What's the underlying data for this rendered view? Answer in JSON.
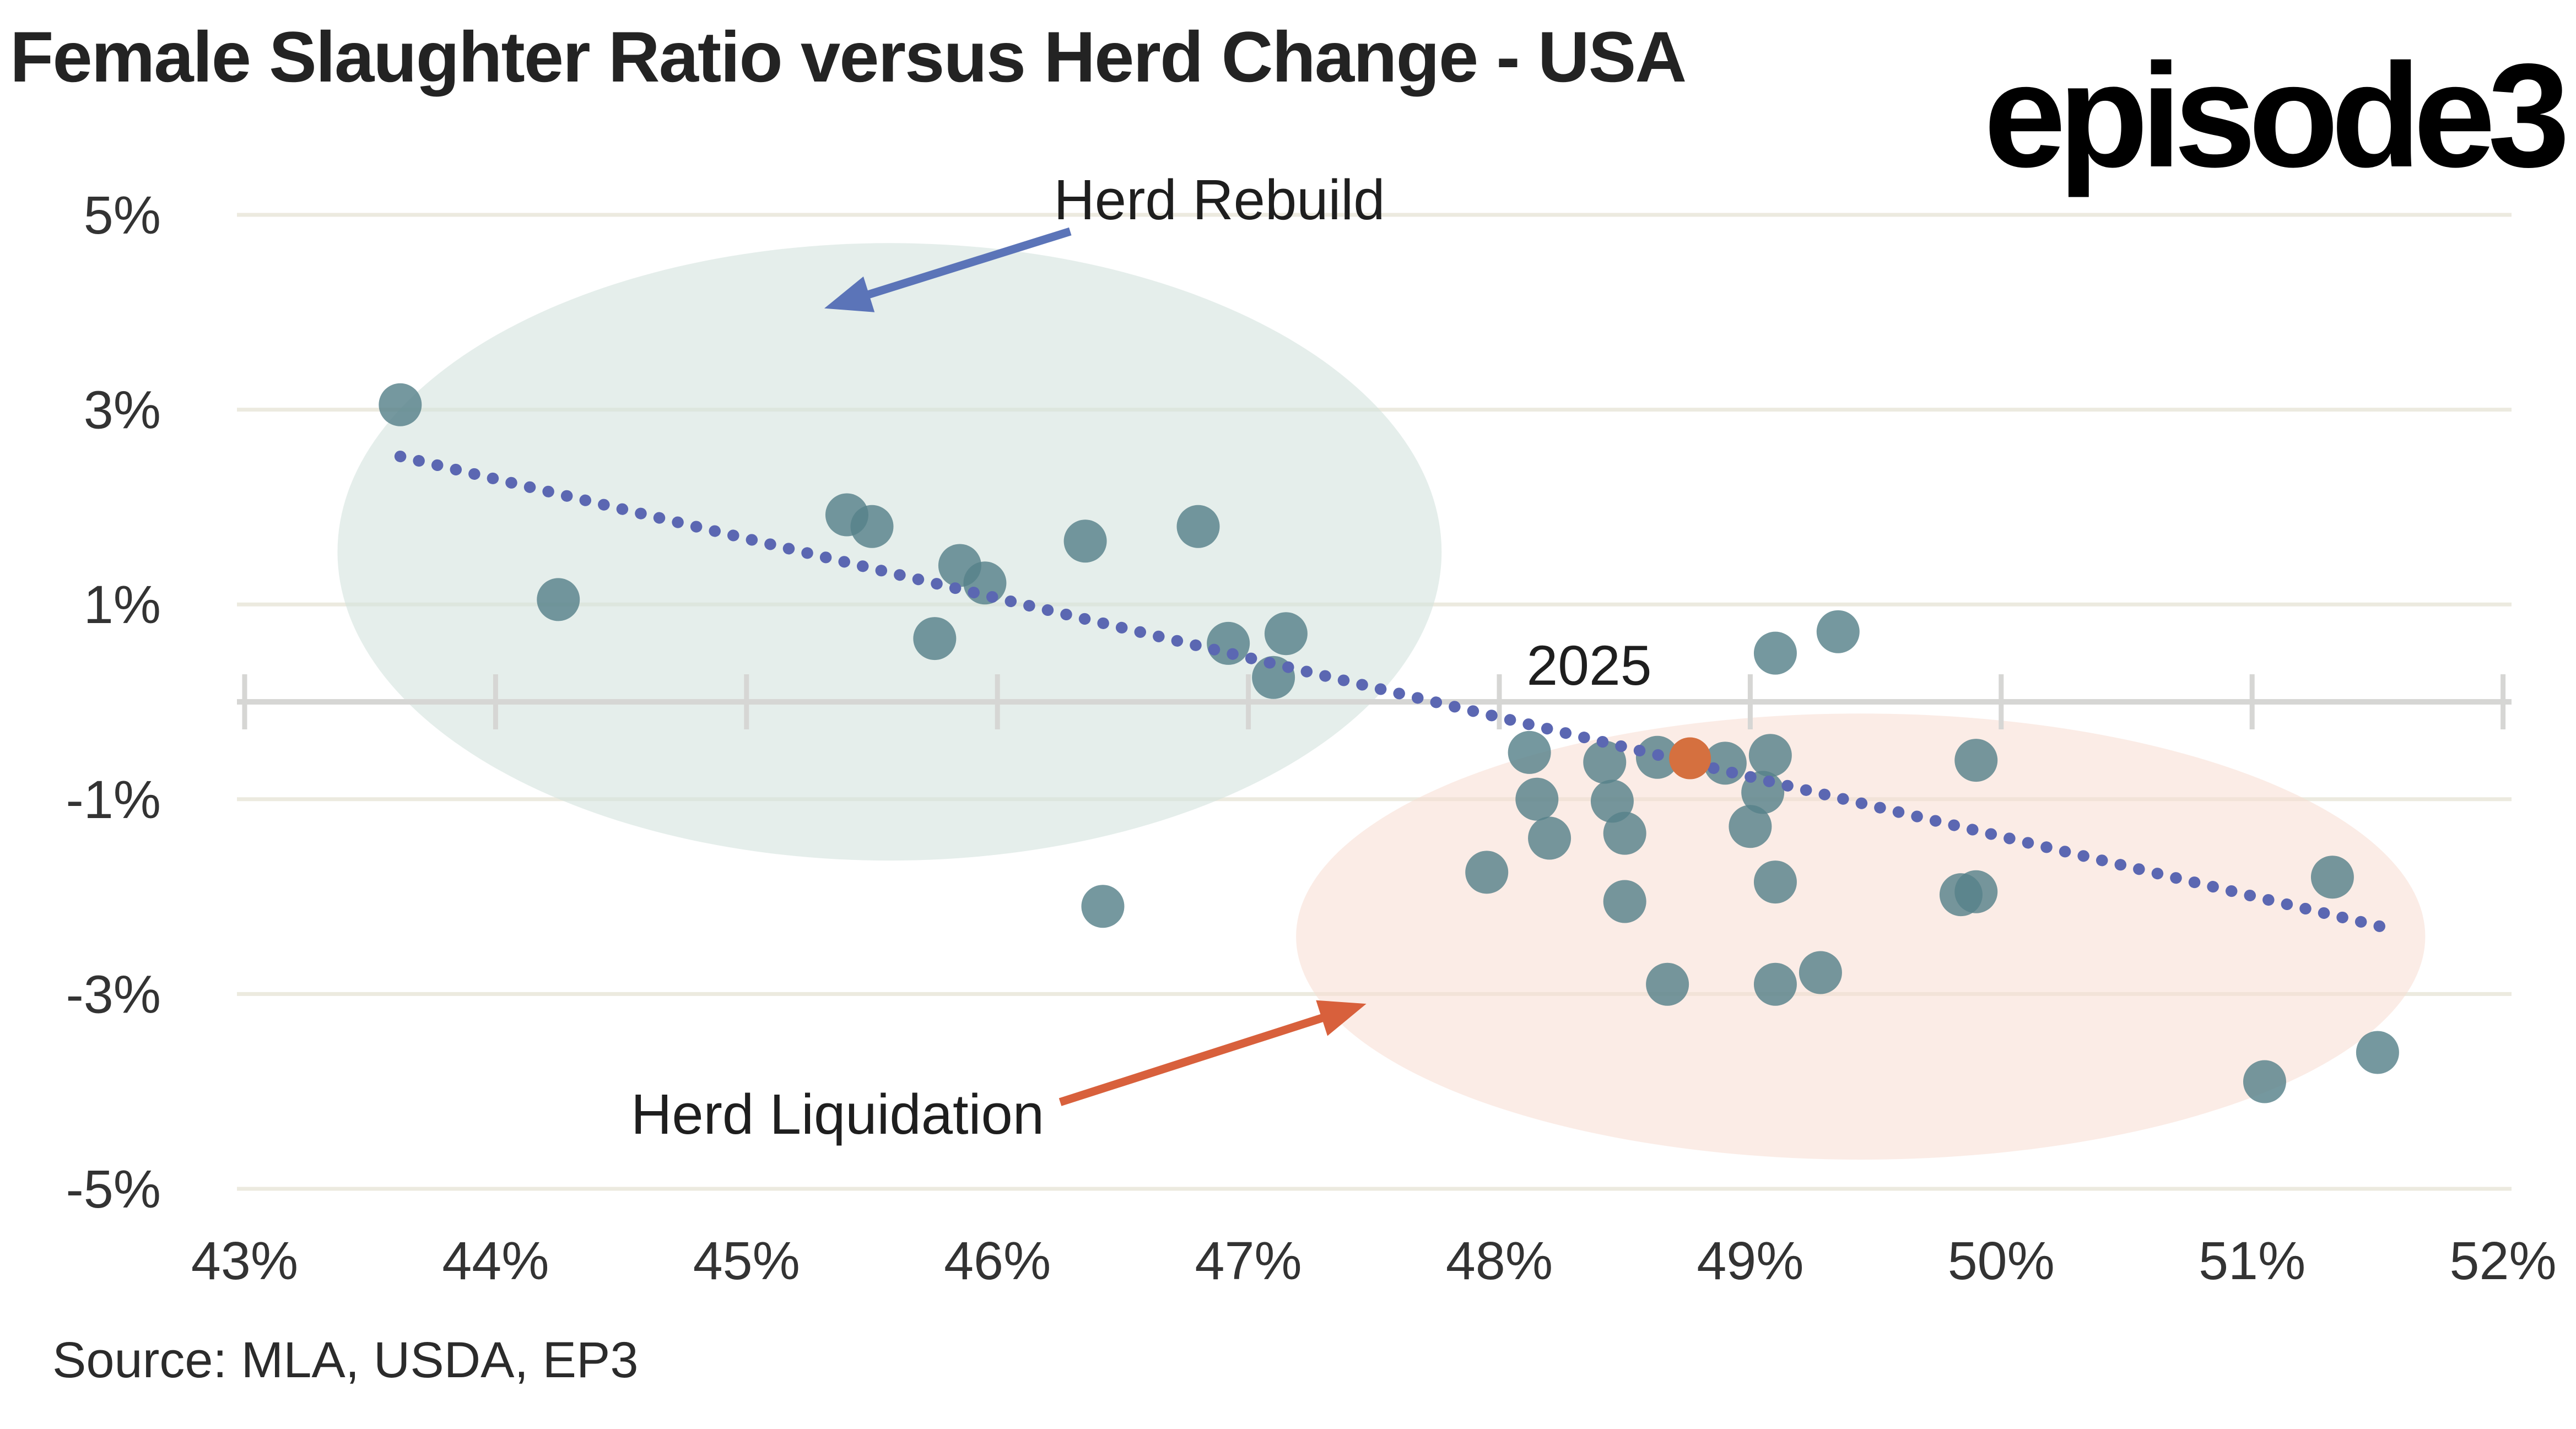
{
  "header": {
    "title": "Female Slaughter Ratio versus Herd Change - USA",
    "logo": "episode3"
  },
  "footer": {
    "source": "Source: MLA, USDA, EP3"
  },
  "annotations": {
    "rebuild_label": "Herd Rebuild",
    "liquidation_label": "Herd Liquidation",
    "year_label": "2025"
  },
  "colors": {
    "background": "#ffffff",
    "title": "#232323",
    "logo": "#000000",
    "axis_text": "#333333",
    "annotation_text": "#1e1e1e",
    "gridline": "#ECEADF",
    "zero_axis": "#D6D6D4",
    "teal_dot": "#57818A",
    "orange_dot": "#D5703F",
    "trendline": "#5B67B2",
    "rebuild_ellipse": "#D3E2DE",
    "liquidation_ellipse": "#F8DCD2",
    "rebuild_arrow": "#5B74B8",
    "liquidation_arrow": "#D8603C"
  },
  "chart_data": {
    "type": "scatter",
    "title": "Female Slaughter Ratio versus Herd Change - USA",
    "xlabel": "",
    "ylabel": "",
    "xlim": [
      43,
      52
    ],
    "ylim": [
      -5,
      5
    ],
    "grid": "horizontal",
    "x_ticks": [
      {
        "value": 43,
        "label": "43%"
      },
      {
        "value": 44,
        "label": "44%"
      },
      {
        "value": 45,
        "label": "45%"
      },
      {
        "value": 46,
        "label": "46%"
      },
      {
        "value": 47,
        "label": "47%"
      },
      {
        "value": 48,
        "label": "48%"
      },
      {
        "value": 49,
        "label": "49%"
      },
      {
        "value": 50,
        "label": "50%"
      },
      {
        "value": 51,
        "label": "51%"
      },
      {
        "value": 52,
        "label": "52%"
      }
    ],
    "y_ticks": [
      {
        "value": 5,
        "label": "5%"
      },
      {
        "value": 3,
        "label": "3%"
      },
      {
        "value": 1,
        "label": "1%"
      },
      {
        "value": -1,
        "label": "-1%"
      },
      {
        "value": -3,
        "label": "-3%"
      },
      {
        "value": -5,
        "label": "-5%"
      }
    ],
    "series": [
      {
        "name": "historical-years",
        "color": "#57818A",
        "points": [
          [
            43.62,
            3.05
          ],
          [
            44.25,
            1.05
          ],
          [
            45.4,
            1.92
          ],
          [
            45.5,
            1.8
          ],
          [
            45.75,
            0.65
          ],
          [
            45.85,
            1.4
          ],
          [
            45.95,
            1.22
          ],
          [
            46.35,
            1.65
          ],
          [
            46.42,
            -2.1
          ],
          [
            46.8,
            1.8
          ],
          [
            46.92,
            0.6
          ],
          [
            47.1,
            0.25
          ],
          [
            47.15,
            0.7
          ],
          [
            47.95,
            -1.75
          ],
          [
            48.12,
            -0.52
          ],
          [
            48.15,
            -1.0
          ],
          [
            48.2,
            -1.4
          ],
          [
            48.42,
            -0.62
          ],
          [
            48.45,
            -1.02
          ],
          [
            48.5,
            -1.35
          ],
          [
            48.5,
            -2.05
          ],
          [
            48.63,
            -0.57
          ],
          [
            48.67,
            -2.9
          ],
          [
            48.9,
            -0.63
          ],
          [
            49.08,
            -0.55
          ],
          [
            49.05,
            -0.93
          ],
          [
            49.0,
            -1.28
          ],
          [
            49.1,
            -1.85
          ],
          [
            49.1,
            -2.9
          ],
          [
            49.28,
            -2.78
          ],
          [
            49.1,
            0.5
          ],
          [
            49.35,
            0.72
          ],
          [
            49.84,
            -1.98
          ],
          [
            49.9,
            -1.95
          ],
          [
            49.9,
            -0.6
          ],
          [
            51.32,
            -1.8
          ],
          [
            51.05,
            -3.9
          ],
          [
            51.5,
            -3.6
          ]
        ]
      },
      {
        "name": "2025",
        "color": "#D5703F",
        "points": [
          [
            48.76,
            -0.58
          ]
        ]
      }
    ],
    "trendline": {
      "style": "dotted",
      "color": "#5B67B2",
      "x1": 43.62,
      "y1": 2.52,
      "x2": 51.55,
      "y2": -2.33
    },
    "regions": [
      {
        "name": "herd-rebuild",
        "shape": "ellipse",
        "color": "#D3E2DE",
        "opacity": 0.6,
        "cx": 45.57,
        "cy": 1.54,
        "rx": 2.2,
        "ry": 3.17
      },
      {
        "name": "herd-liquidation",
        "shape": "ellipse",
        "color": "#F8DCD2",
        "opacity": 0.55,
        "cx": 49.44,
        "cy": -2.41,
        "rx": 2.25,
        "ry": 2.29
      }
    ],
    "annotations": [
      {
        "name": "rebuild",
        "text": "Herd Rebuild",
        "x": 46.88,
        "y": 4.97,
        "arrow": {
          "color": "#5B74B8",
          "from_x": 46.29,
          "from_y": 4.83,
          "to_x": 45.31,
          "to_y": 4.04
        }
      },
      {
        "name": "liquidation",
        "text": "Herd Liquidation",
        "x": 45.36,
        "y": -4.43,
        "arrow": {
          "color": "#D8603C",
          "from_x": 46.25,
          "from_y": -4.11,
          "to_x": 47.47,
          "to_y": -3.1
        }
      },
      {
        "name": "year-2025",
        "text": "2025",
        "x": 48.36,
        "y": 0.18,
        "arrow": null
      }
    ]
  }
}
